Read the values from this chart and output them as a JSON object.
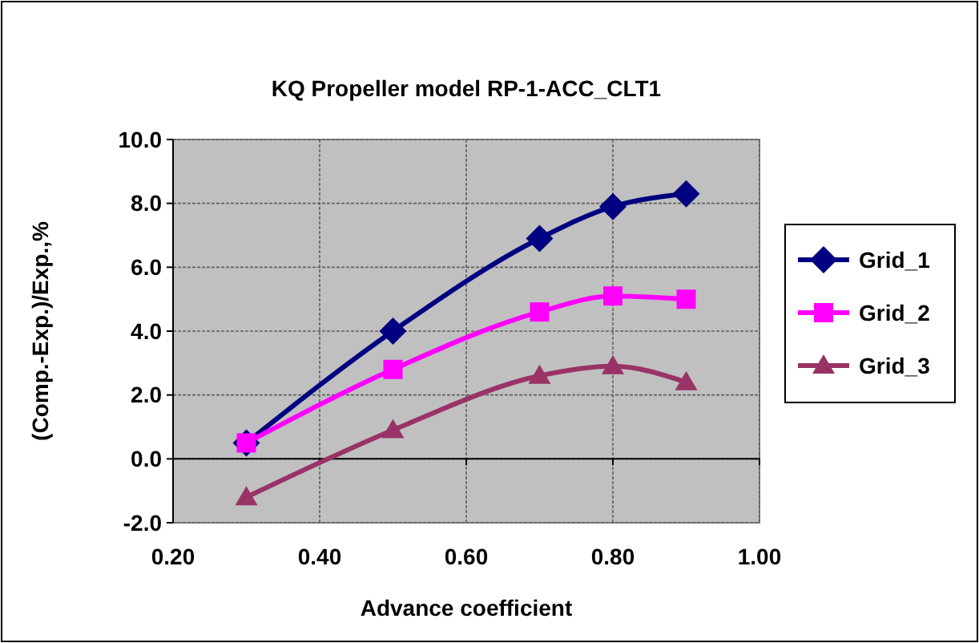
{
  "chart_data": {
    "type": "line",
    "title": "KQ Propeller model RP-1-ACC_CLT1",
    "xlabel": "Advance coefficient",
    "ylabel": "(Comp.-Exp.)/Exp.,%",
    "x": [
      0.3,
      0.5,
      0.7,
      0.8,
      0.9
    ],
    "series": [
      {
        "name": "Grid_1",
        "color": "#000080",
        "marker": "diamond",
        "values": [
          0.5,
          4.0,
          6.9,
          7.9,
          8.3
        ]
      },
      {
        "name": "Grid_2",
        "color": "#ff00ff",
        "marker": "square",
        "values": [
          0.5,
          2.8,
          4.6,
          5.1,
          5.0
        ]
      },
      {
        "name": "Grid_3",
        "color": "#993366",
        "marker": "triangle",
        "values": [
          -1.2,
          0.9,
          2.6,
          2.9,
          2.4
        ]
      }
    ],
    "xlim": [
      0.2,
      1.0
    ],
    "xticks": [
      {
        "value": 0.2,
        "label": "0.20"
      },
      {
        "value": 0.4,
        "label": "0.40"
      },
      {
        "value": 0.6,
        "label": "0.60"
      },
      {
        "value": 0.8,
        "label": "0.80"
      },
      {
        "value": 1.0,
        "label": "1.00"
      }
    ],
    "ylim": [
      -2,
      10
    ],
    "yticks": [
      {
        "value": -2,
        "label": "-2.0"
      },
      {
        "value": 0,
        "label": "0.0"
      },
      {
        "value": 2,
        "label": "2.0"
      },
      {
        "value": 4,
        "label": "4.0"
      },
      {
        "value": 6,
        "label": "6.0"
      },
      {
        "value": 8,
        "label": "8.0"
      },
      {
        "value": 10,
        "label": "10.0"
      }
    ],
    "grid": true,
    "legend": "right",
    "line_style": "solid"
  }
}
